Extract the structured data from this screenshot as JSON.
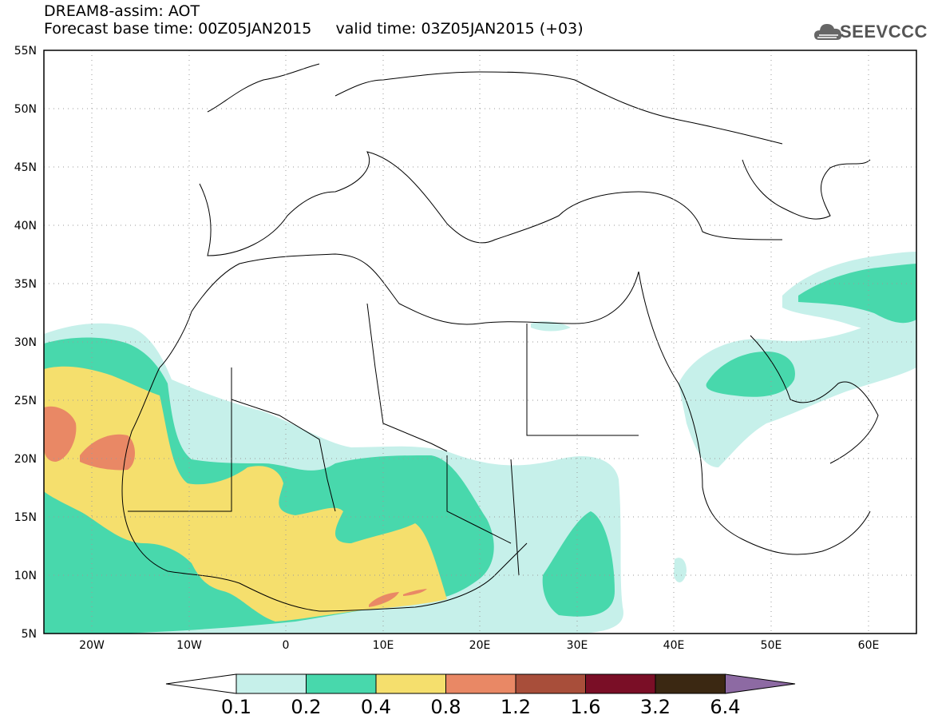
{
  "header": {
    "line1": "DREAM8-assim: AOT",
    "line2": "Forecast base time: 00Z05JAN2015     valid time: 03Z05JAN2015 (+03)"
  },
  "logo": {
    "text": "SEEVCCC",
    "icon": "cloud-icon"
  },
  "map": {
    "lon_labels": [
      "20W",
      "10W",
      "0",
      "10E",
      "20E",
      "30E",
      "40E",
      "50E",
      "60E"
    ],
    "lat_labels": [
      "55N",
      "50N",
      "45N",
      "40N",
      "35N",
      "30N",
      "25N",
      "20N",
      "15N",
      "10N",
      "5N"
    ],
    "grid": "dotted"
  },
  "colorbar": {
    "labels": [
      "0.1",
      "0.2",
      "0.4",
      "0.8",
      "1.2",
      "1.6",
      "3.2",
      "6.4"
    ],
    "colors": [
      "#ffffff",
      "#c6f0ea",
      "#48d8ac",
      "#f5df6d",
      "#e98865",
      "#a84e3a",
      "#7a0e26",
      "#3b2812",
      "#8d6aa3"
    ]
  }
}
